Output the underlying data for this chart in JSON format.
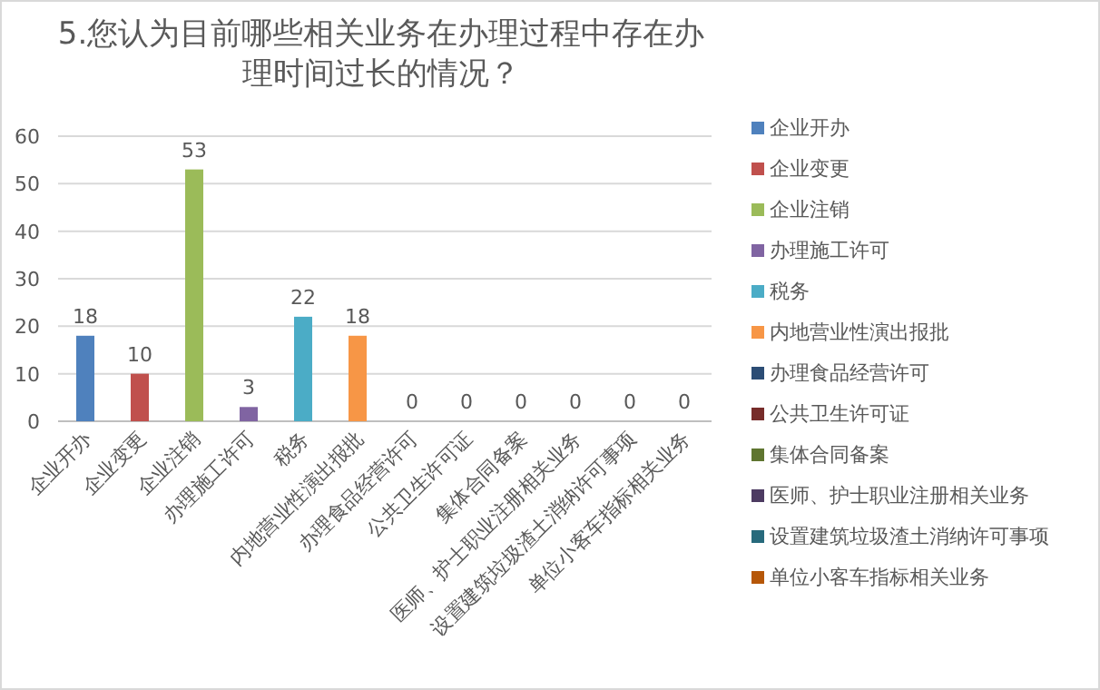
{
  "chart_data": {
    "type": "bar",
    "title": "5.您认为目前哪些相关业务在办理过程中存在办理时间过长的情况？",
    "categories": [
      "企业开办",
      "企业变更",
      "企业注销",
      "办理施工许可",
      "税务",
      "内地营业性演出报批",
      "办理食品经营许可",
      "公共卫生许可证",
      "集体合同备案",
      "医师、护士职业注册相关业务",
      "设置建筑垃圾渣土消纳许可事项",
      "单位小客车指标相关业务"
    ],
    "series": [
      {
        "name": "企业开办",
        "color": "#4f81bd",
        "values": [
          18,
          null,
          null,
          null,
          null,
          null,
          null,
          null,
          null,
          null,
          null,
          null
        ]
      },
      {
        "name": "企业变更",
        "color": "#c0504d",
        "values": [
          null,
          10,
          null,
          null,
          null,
          null,
          null,
          null,
          null,
          null,
          null,
          null
        ]
      },
      {
        "name": "企业注销",
        "color": "#9bbb59",
        "values": [
          null,
          null,
          53,
          null,
          null,
          null,
          null,
          null,
          null,
          null,
          null,
          null
        ]
      },
      {
        "name": "办理施工许可",
        "color": "#8064a2",
        "values": [
          null,
          null,
          null,
          3,
          null,
          null,
          null,
          null,
          null,
          null,
          null,
          null
        ]
      },
      {
        "name": "税务",
        "color": "#4bacc6",
        "values": [
          null,
          null,
          null,
          null,
          22,
          null,
          null,
          null,
          null,
          null,
          null,
          null
        ]
      },
      {
        "name": "内地营业性演出报批",
        "color": "#f79646",
        "values": [
          null,
          null,
          null,
          null,
          null,
          18,
          null,
          null,
          null,
          null,
          null,
          null
        ]
      },
      {
        "name": "办理食品经营许可",
        "color": "#2c4d75",
        "values": [
          null,
          null,
          null,
          null,
          null,
          null,
          0,
          null,
          null,
          null,
          null,
          null
        ]
      },
      {
        "name": "公共卫生许可证",
        "color": "#772c2a",
        "values": [
          null,
          null,
          null,
          null,
          null,
          null,
          null,
          0,
          null,
          null,
          null,
          null
        ]
      },
      {
        "name": "集体合同备案",
        "color": "#5f7530",
        "values": [
          null,
          null,
          null,
          null,
          null,
          null,
          null,
          null,
          0,
          null,
          null,
          null
        ]
      },
      {
        "name": "医师、护士职业注册相关业务",
        "color": "#4d3b62",
        "values": [
          null,
          null,
          null,
          null,
          null,
          null,
          null,
          null,
          null,
          0,
          null,
          null
        ]
      },
      {
        "name": "设置建筑垃圾渣土消纳许可事项",
        "color": "#276a7c",
        "values": [
          null,
          null,
          null,
          null,
          null,
          null,
          null,
          null,
          null,
          null,
          0,
          null
        ]
      },
      {
        "name": "单位小客车指标相关业务",
        "color": "#b65708",
        "values": [
          null,
          null,
          null,
          null,
          null,
          null,
          null,
          null,
          null,
          null,
          null,
          0
        ]
      }
    ],
    "ylim": [
      0,
      60
    ],
    "yticks": [
      0,
      10,
      20,
      30,
      40,
      50,
      60
    ],
    "grid": "y",
    "legend": "right",
    "data_labels": true
  }
}
